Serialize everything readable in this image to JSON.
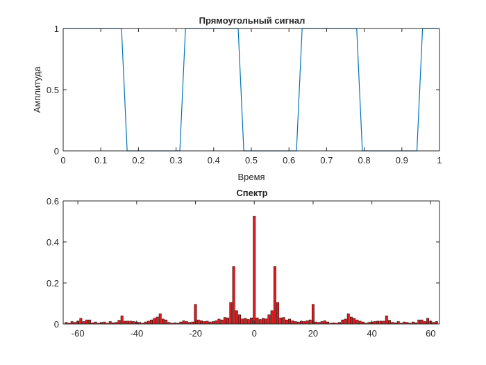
{
  "chart_data": [
    {
      "type": "line",
      "title": "Прямоугольный сигнал",
      "xlabel": "Время",
      "ylabel": "Амплитуда",
      "xlim": [
        0,
        1
      ],
      "ylim": [
        0,
        1
      ],
      "x_ticks": [
        "0",
        "0.1",
        "0.2",
        "0.3",
        "0.4",
        "0.5",
        "0.6",
        "0.7",
        "0.8",
        "0.9",
        "1"
      ],
      "y_ticks": [
        "0",
        "0.5",
        "1"
      ],
      "grid": false,
      "line_color": "#0072BD",
      "series": [
        {
          "x": [
            0.0,
            0.155,
            0.17,
            0.31,
            0.325,
            0.465,
            0.48,
            0.62,
            0.635,
            0.78,
            0.795,
            0.94,
            0.955,
            1.0
          ],
          "y": [
            1,
            1,
            0,
            0,
            1,
            1,
            0,
            0,
            1,
            1,
            0,
            0,
            1,
            1
          ]
        }
      ]
    },
    {
      "type": "bar",
      "title": "Спектр",
      "xlabel": "",
      "ylabel": "",
      "xlim": [
        -65,
        63
      ],
      "ylim": [
        0,
        0.6
      ],
      "x_ticks": [
        "-60",
        "-40",
        "-20",
        "0",
        "20",
        "40",
        "60"
      ],
      "y_ticks": [
        "0",
        "0.2",
        "0.4",
        "0.6"
      ],
      "grid": false,
      "bar_color": "#E31A1C",
      "bar_edge_color": "#000000",
      "x": [
        -64,
        -63,
        -62,
        -61,
        -60,
        -59,
        -58,
        -57,
        -56,
        -55,
        -54,
        -53,
        -52,
        -51,
        -50,
        -49,
        -48,
        -47,
        -46,
        -45,
        -44,
        -43,
        -42,
        -41,
        -40,
        -39,
        -38,
        -37,
        -36,
        -35,
        -34,
        -33,
        -32,
        -31,
        -30,
        -29,
        -28,
        -27,
        -26,
        -25,
        -24,
        -23,
        -22,
        -21,
        -20,
        -19,
        -18,
        -17,
        -16,
        -15,
        -14,
        -13,
        -12,
        -11,
        -10,
        -9,
        -8,
        -7,
        -6,
        -5,
        -4,
        -3,
        -2,
        -1,
        0,
        1,
        2,
        3,
        4,
        5,
        6,
        7,
        8,
        9,
        10,
        11,
        12,
        13,
        14,
        15,
        16,
        17,
        18,
        19,
        20,
        21,
        22,
        23,
        24,
        25,
        26,
        27,
        28,
        29,
        30,
        31,
        32,
        33,
        34,
        35,
        36,
        37,
        38,
        39,
        40,
        41,
        42,
        43,
        44,
        45,
        46,
        47,
        48,
        49,
        50,
        51,
        52,
        53,
        54,
        55,
        56,
        57,
        58,
        59,
        60,
        61,
        62
      ],
      "values": [
        0.008,
        0.004,
        0.012,
        0.008,
        0.014,
        0.028,
        0.012,
        0.02,
        0.02,
        0.006,
        0.01,
        0.004,
        0.008,
        0.01,
        0.004,
        0.012,
        0.006,
        0.008,
        0.018,
        0.04,
        0.014,
        0.014,
        0.014,
        0.012,
        0.01,
        0.008,
        0.004,
        0.01,
        0.014,
        0.02,
        0.028,
        0.034,
        0.05,
        0.024,
        0.02,
        0.008,
        0.004,
        0.006,
        0.004,
        0.01,
        0.016,
        0.012,
        0.008,
        0.01,
        0.096,
        0.02,
        0.016,
        0.012,
        0.014,
        0.01,
        0.012,
        0.016,
        0.024,
        0.02,
        0.032,
        0.03,
        0.105,
        0.28,
        0.065,
        0.045,
        0.025,
        0.028,
        0.022,
        0.03,
        0.525,
        0.03,
        0.022,
        0.028,
        0.025,
        0.045,
        0.065,
        0.28,
        0.105,
        0.03,
        0.032,
        0.02,
        0.024,
        0.016,
        0.012,
        0.01,
        0.014,
        0.012,
        0.016,
        0.02,
        0.096,
        0.01,
        0.008,
        0.012,
        0.016,
        0.01,
        0.004,
        0.006,
        0.004,
        0.008,
        0.02,
        0.024,
        0.05,
        0.034,
        0.028,
        0.02,
        0.014,
        0.01,
        0.004,
        0.008,
        0.01,
        0.012,
        0.014,
        0.014,
        0.014,
        0.04,
        0.018,
        0.008,
        0.006,
        0.012,
        0.004,
        0.01,
        0.008,
        0.004,
        0.01,
        0.006,
        0.02,
        0.02,
        0.012,
        0.028,
        0.014,
        0.008,
        0.012
      ]
    }
  ]
}
